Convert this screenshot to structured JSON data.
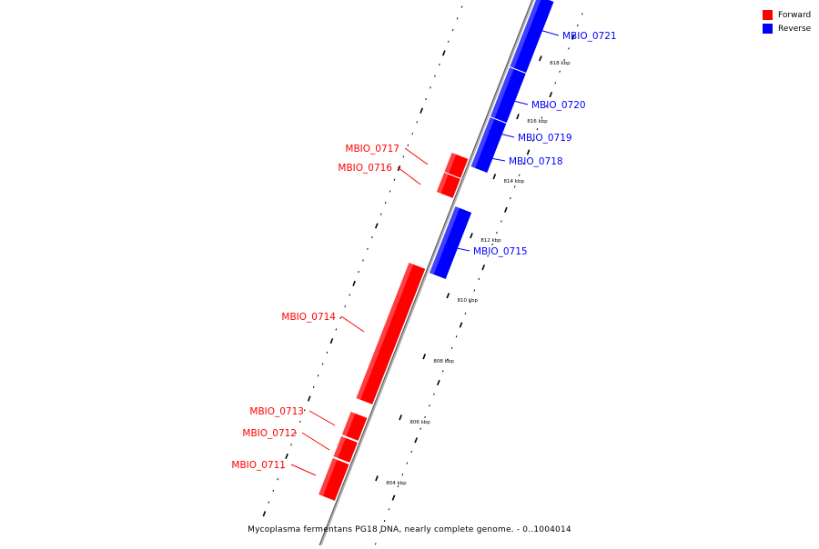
{
  "legend": [
    {
      "label": "Forward",
      "color": "#ff0000"
    },
    {
      "label": "Reverse",
      "color": "#0000ff"
    }
  ],
  "caption": "Mycoplasma fermentans PG18 DNA, nearly complete genome. - 0..1004014",
  "scale": {
    "unit": "kbp",
    "ticks": [
      "804 kbp",
      "806 kbp",
      "808 kbp",
      "810 kbp",
      "812 kbp",
      "814 kbp",
      "816 kbp",
      "818 kbp"
    ]
  },
  "genes": [
    {
      "name": "MBIO_0711",
      "strand": "Forward"
    },
    {
      "name": "MBIO_0712",
      "strand": "Forward"
    },
    {
      "name": "MBIO_0713",
      "strand": "Forward"
    },
    {
      "name": "MBIO_0714",
      "strand": "Forward"
    },
    {
      "name": "MBIO_0715",
      "strand": "Reverse"
    },
    {
      "name": "MBIO_0716",
      "strand": "Forward"
    },
    {
      "name": "MBIO_0717",
      "strand": "Forward"
    },
    {
      "name": "MBIO_0718",
      "strand": "Reverse"
    },
    {
      "name": "MBIO_0719",
      "strand": "Reverse"
    },
    {
      "name": "MBIO_0720",
      "strand": "Reverse"
    },
    {
      "name": "MBIO_0721",
      "strand": "Reverse"
    }
  ]
}
